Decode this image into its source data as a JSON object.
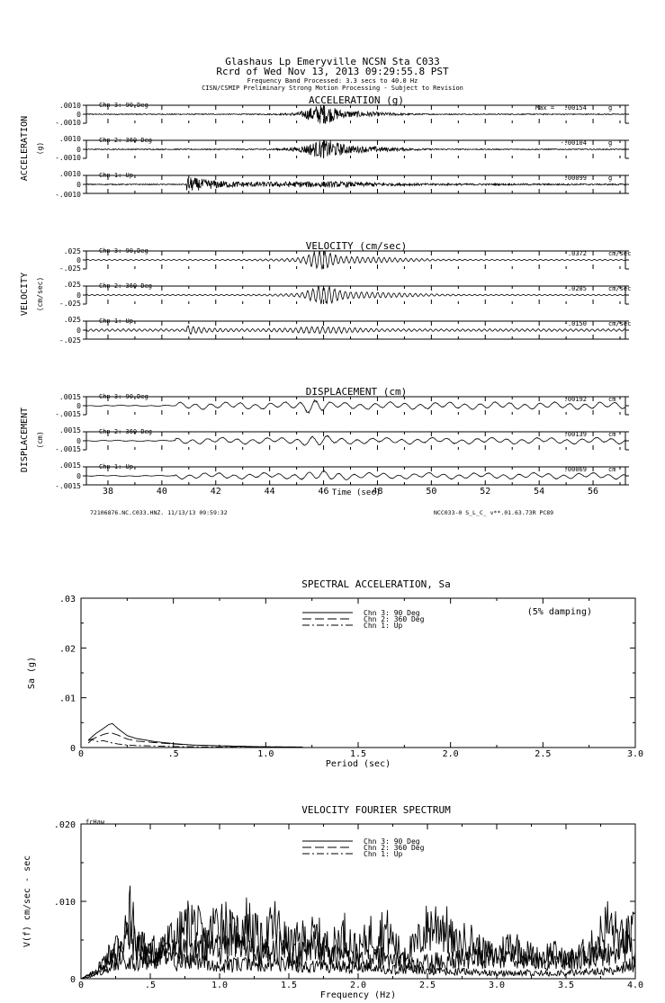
{
  "header": {
    "line1": "Glashaus Lp Emeryville    NCSN Sta C033",
    "line2": "Rcrd of Wed Nov 13, 2013 09:29:55.8 PST",
    "line3": "Frequency Band Processed: 3.3 secs to 40.0 Hz",
    "line4": "CISN/CSMIP Preliminary Strong Motion Processing - Subject to Revision"
  },
  "footer": {
    "left": "72106876.NC.C033.HNZ. 11/13/13 09:59:32",
    "right": "NCC033-0  S_L_C_  v**.01.63.73R PC89"
  },
  "chart_data": [
    {
      "type": "line",
      "title": "ACCELERATION (g)",
      "ylabel": "ACCELERATION",
      "yunit": "(g)",
      "xlim": [
        37.2,
        57.2
      ],
      "channels": [
        {
          "name": "Chn 3: 90 Deg",
          "ytick_top": ".0010",
          "ytick_mid": "0",
          "ytick_bot": "-.0010",
          "max_label": "Max =",
          "max": ".00154",
          "unit": "g"
        },
        {
          "name": "Chn 2: 360 Deg",
          "ytick_top": ".0010",
          "ytick_mid": "0",
          "ytick_bot": "-.0010",
          "max_label": "",
          "max": "-.00104",
          "unit": "g"
        },
        {
          "name": "Chn 1: Up",
          "ytick_top": ".0010",
          "ytick_mid": "0",
          "ytick_bot": "-.0010",
          "max_label": "",
          "max": ".00099",
          "unit": "g"
        }
      ]
    },
    {
      "type": "line",
      "title": "VELOCITY (cm/sec)",
      "ylabel": "VELOCITY",
      "yunit": "(cm/sec)",
      "xlim": [
        37.2,
        57.2
      ],
      "channels": [
        {
          "name": "Chn 3: 90 Deg",
          "ytick_top": ".025",
          "ytick_mid": "0",
          "ytick_bot": "-.025",
          "max_label": "",
          "max": "-.0372",
          "unit": "cm/sec"
        },
        {
          "name": "Chn 2: 360 Deg",
          "ytick_top": ".025",
          "ytick_mid": "0",
          "ytick_bot": "-.025",
          "max_label": "",
          "max": "-.0285",
          "unit": "cm/sec"
        },
        {
          "name": "Chn 1: Up",
          "ytick_top": ".025",
          "ytick_mid": "0",
          "ytick_bot": "-.025",
          "max_label": "",
          "max": "-.0150",
          "unit": "cm/sec"
        }
      ]
    },
    {
      "type": "line",
      "title": "DISPLACEMENT (cm)",
      "ylabel": "DISPLACEMENT",
      "yunit": "(cm)",
      "xlabel": "Time (sec)",
      "xlim": [
        37.2,
        57.2
      ],
      "xticks": [
        38,
        40,
        42,
        44,
        46,
        48,
        50,
        52,
        54,
        56
      ],
      "channels": [
        {
          "name": "Chn 3: 90 Deg",
          "ytick_top": ".0015",
          "ytick_mid": "0",
          "ytick_bot": "-.0015",
          "max_label": "",
          "max": ".00192",
          "unit": "cm"
        },
        {
          "name": "Chn 2: 360 Deg",
          "ytick_top": ".0015",
          "ytick_mid": "0",
          "ytick_bot": "-.0015",
          "max_label": "",
          "max": ".00139",
          "unit": "cm"
        },
        {
          "name": "Chn 1: Up",
          "ytick_top": ".0015",
          "ytick_mid": "0",
          "ytick_bot": "-.0015",
          "max_label": "",
          "max": ".00069",
          "unit": "cm"
        }
      ]
    },
    {
      "type": "line",
      "title": "SPECTRAL ACCELERATION, Sa",
      "xlabel": "Period (sec)",
      "ylabel": "Sa (g)",
      "xlim": [
        0,
        3.0
      ],
      "ylim": [
        0,
        0.03
      ],
      "xticks": [
        {
          "v": 0.5,
          "label": ".5"
        },
        {
          "v": 1.0,
          "label": "1.0"
        },
        {
          "v": 1.5,
          "label": "1.5"
        },
        {
          "v": 2.0,
          "label": "2.0"
        },
        {
          "v": 2.5,
          "label": "2.5"
        },
        {
          "v": 3.0,
          "label": "3.0"
        }
      ],
      "yticks": [
        {
          "v": 0,
          "label": "0"
        },
        {
          "v": 0.01,
          "label": ".01"
        },
        {
          "v": 0.02,
          "label": ".02"
        },
        {
          "v": 0.03,
          "label": ".03"
        }
      ],
      "annotation": "(5% damping)",
      "series": [
        {
          "name": "Chn 3: 90 Deg",
          "x": [
            0.04,
            0.08,
            0.12,
            0.15,
            0.17,
            0.2,
            0.25,
            0.3,
            0.4,
            0.5,
            0.6,
            0.8,
            1.0,
            1.2
          ],
          "y": [
            0.0015,
            0.0028,
            0.0038,
            0.0046,
            0.0048,
            0.0038,
            0.0024,
            0.0018,
            0.0012,
            0.0008,
            0.0005,
            0.0003,
            0.00015,
            0.0001
          ]
        },
        {
          "name": "Chn 2: 360 Deg",
          "x": [
            0.04,
            0.08,
            0.12,
            0.16,
            0.2,
            0.25,
            0.3,
            0.4,
            0.5,
            0.6,
            0.8,
            1.0,
            1.2
          ],
          "y": [
            0.0014,
            0.002,
            0.0026,
            0.003,
            0.0025,
            0.0017,
            0.0013,
            0.001,
            0.0007,
            0.0005,
            0.0003,
            0.00015,
            0.0001
          ]
        },
        {
          "name": "Chn 1: Up",
          "x": [
            0.04,
            0.06,
            0.09,
            0.12,
            0.16,
            0.2,
            0.25,
            0.3,
            0.4,
            0.5,
            0.7,
            1.0
          ],
          "y": [
            0.0009,
            0.0016,
            0.0012,
            0.0014,
            0.001,
            0.0007,
            0.0005,
            0.0004,
            0.0003,
            0.0002,
            0.0001,
            5e-05
          ]
        }
      ]
    },
    {
      "type": "line",
      "title": "VELOCITY FOURIER SPECTRUM",
      "xlabel": "Frequency (Hz)",
      "ylabel": "V(f)  cm/sec - sec",
      "xlim": [
        0,
        4.0
      ],
      "ylim": [
        0,
        0.02
      ],
      "xticks": [
        {
          "v": 0.5,
          "label": ".5"
        },
        {
          "v": 1.0,
          "label": "1.0"
        },
        {
          "v": 1.5,
          "label": "1.5"
        },
        {
          "v": 2.0,
          "label": "2.0"
        },
        {
          "v": 2.5,
          "label": "2.5"
        },
        {
          "v": 3.0,
          "label": "3.0"
        },
        {
          "v": 3.5,
          "label": "3.5"
        },
        {
          "v": 4.0,
          "label": "4.0"
        }
      ],
      "yticks": [
        {
          "v": 0,
          "label": "0"
        },
        {
          "v": 0.01,
          "label": ".010"
        },
        {
          "v": 0.02,
          "label": ".020"
        }
      ],
      "annotation": "fcHaw",
      "series": [
        {
          "name": "Chn 3: 90 Deg",
          "x": [
            0.0,
            0.1,
            0.2,
            0.3,
            0.4,
            0.5,
            0.6,
            0.7,
            0.8,
            0.9,
            1.0,
            1.1,
            1.2,
            1.3,
            1.4,
            1.5,
            1.6,
            1.7,
            1.8,
            1.9,
            2.0,
            2.1,
            2.2,
            2.3,
            2.4,
            2.5,
            2.6,
            2.7,
            2.8,
            2.9,
            3.0,
            3.1,
            3.2,
            3.3,
            3.4,
            3.5,
            3.6,
            3.7,
            3.8,
            3.9,
            4.0
          ],
          "y": [
            0.0,
            0.001,
            0.004,
            0.007,
            0.006,
            0.0045,
            0.006,
            0.007,
            0.0095,
            0.006,
            0.0105,
            0.007,
            0.0095,
            0.006,
            0.009,
            0.0055,
            0.0065,
            0.007,
            0.005,
            0.0075,
            0.0045,
            0.0075,
            0.008,
            0.0045,
            0.005,
            0.0085,
            0.0095,
            0.0055,
            0.0065,
            0.0045,
            0.004,
            0.006,
            0.0045,
            0.0035,
            0.0045,
            0.003,
            0.004,
            0.0055,
            0.009,
            0.0065,
            0.0075
          ]
        },
        {
          "name": "Chn 2: 360 Deg",
          "x": [
            0.0,
            0.1,
            0.2,
            0.3,
            0.36,
            0.4,
            0.5,
            0.6,
            0.7,
            0.8,
            0.9,
            1.0,
            1.1,
            1.2,
            1.3,
            1.4,
            1.5,
            1.6,
            1.7,
            1.8,
            1.9,
            2.0,
            2.2,
            2.4,
            2.6,
            2.8,
            3.0,
            3.2,
            3.4,
            3.6,
            3.8,
            3.9,
            4.0
          ],
          "y": [
            0.0,
            0.001,
            0.003,
            0.005,
            0.0115,
            0.006,
            0.004,
            0.005,
            0.0055,
            0.004,
            0.0055,
            0.005,
            0.0065,
            0.0045,
            0.0045,
            0.0055,
            0.0045,
            0.004,
            0.0055,
            0.004,
            0.0035,
            0.003,
            0.0035,
            0.0025,
            0.003,
            0.0035,
            0.0035,
            0.0025,
            0.003,
            0.0035,
            0.004,
            0.006,
            0.004
          ]
        },
        {
          "name": "Chn 1: Up",
          "x": [
            0.0,
            0.1,
            0.2,
            0.3,
            0.4,
            0.5,
            0.6,
            0.7,
            0.8,
            0.9,
            1.0,
            1.2,
            1.4,
            1.6,
            1.8,
            2.0,
            2.2,
            2.4,
            2.6,
            2.8,
            3.0,
            3.2,
            3.4,
            3.6,
            3.8,
            4.0
          ],
          "y": [
            0.0,
            0.0005,
            0.002,
            0.003,
            0.003,
            0.0025,
            0.0035,
            0.0025,
            0.003,
            0.0025,
            0.002,
            0.0025,
            0.0028,
            0.002,
            0.0022,
            0.0018,
            0.0015,
            0.0016,
            0.0012,
            0.0011,
            0.0009,
            0.001,
            0.0009,
            0.0011,
            0.0013,
            0.0025
          ]
        }
      ]
    }
  ]
}
